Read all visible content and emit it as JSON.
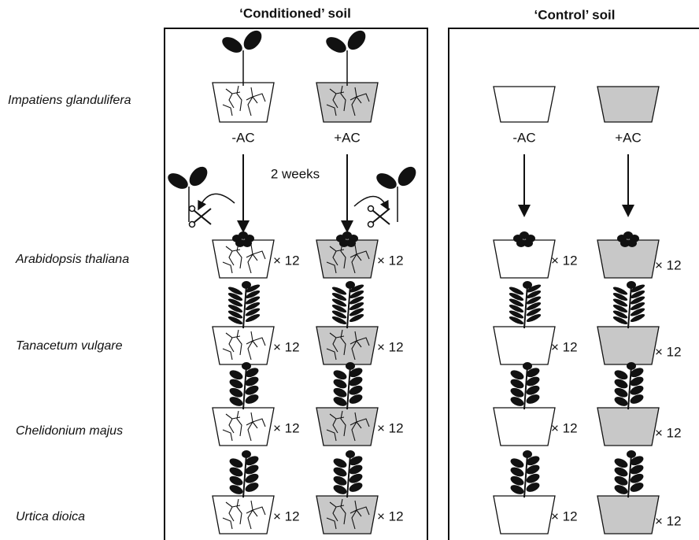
{
  "panels": [
    {
      "title": "‘Conditioned’ soil",
      "columns": [
        "-AC",
        "+AC"
      ],
      "note": "2 weeks"
    },
    {
      "title": "‘Control’ soil",
      "columns": [
        "-AC",
        "+AC"
      ]
    }
  ],
  "species": [
    "Impatiens glandulifera",
    "Arabidopsis thaliana",
    "Tanacetum vulgare",
    "Chelidonium majus",
    "Urtica dioica"
  ],
  "replicate_label": "× 12"
}
